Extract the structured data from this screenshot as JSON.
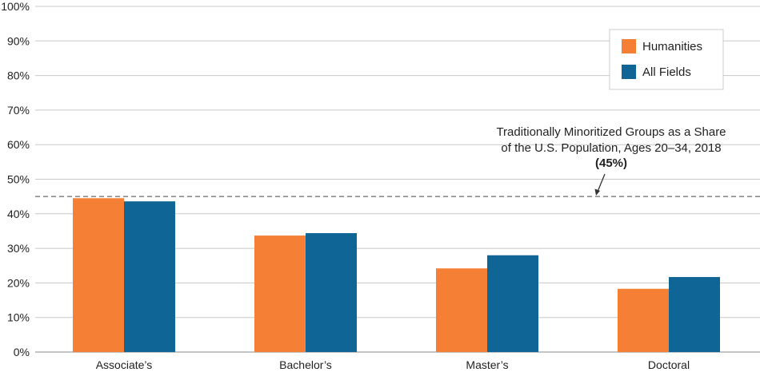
{
  "chart_data": {
    "type": "bar",
    "title": "",
    "xlabel": "",
    "ylabel": "",
    "categories": [
      "Associate’s",
      "Bachelor’s",
      "Master’s",
      "Doctoral"
    ],
    "series": [
      {
        "name": "Humanities",
        "values": [
          44.5,
          33.7,
          24.2,
          18.3
        ]
      },
      {
        "name": "All Fields",
        "values": [
          43.6,
          34.4,
          28.0,
          21.7
        ]
      }
    ],
    "ylim": [
      0,
      100
    ],
    "yticks": [
      "0%",
      "10%",
      "20%",
      "30%",
      "40%",
      "50%",
      "60%",
      "70%",
      "80%",
      "90%",
      "100%"
    ],
    "grid": true,
    "legend_position": "top-right",
    "reference_line": {
      "value": 45,
      "style": "dashed",
      "label_lines": [
        "Traditionally Minoritized Groups as a Share",
        "of the U.S. Population, Ages 20–34, 2018"
      ],
      "value_label": "(45%)"
    },
    "colors": {
      "Humanities": "#f47f35",
      "All Fields": "#0f6596"
    }
  }
}
